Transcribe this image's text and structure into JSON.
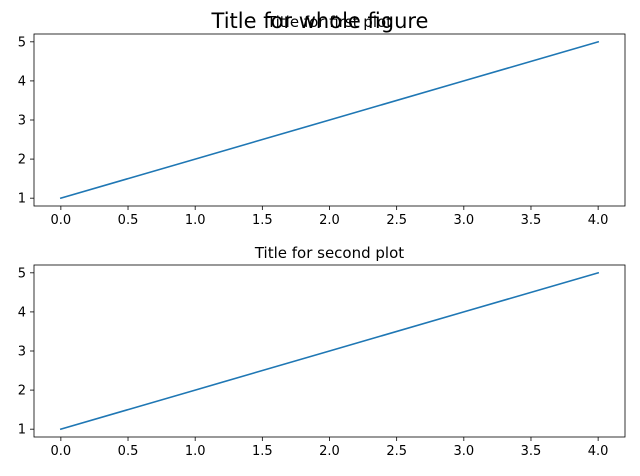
{
  "figure": {
    "suptitle": "Title for whole figure"
  },
  "chart_data": [
    {
      "type": "line",
      "title": "Title for first plot",
      "x": [
        0,
        1,
        2,
        3,
        4
      ],
      "series": [
        {
          "values": [
            1,
            2,
            3,
            4,
            5
          ],
          "color": "#1f77b4"
        }
      ],
      "xlim": [
        -0.2,
        4.2
      ],
      "ylim": [
        0.8,
        5.2
      ],
      "xticks": [
        0.0,
        0.5,
        1.0,
        1.5,
        2.0,
        2.5,
        3.0,
        3.5,
        4.0
      ],
      "xtick_labels": [
        "0.0",
        "0.5",
        "1.0",
        "1.5",
        "2.0",
        "2.5",
        "3.0",
        "3.5",
        "4.0"
      ],
      "yticks": [
        1,
        2,
        3,
        4,
        5
      ],
      "ytick_labels": [
        "1",
        "2",
        "3",
        "4",
        "5"
      ],
      "grid": false,
      "legend": "none"
    },
    {
      "type": "line",
      "title": "Title for second plot",
      "x": [
        0,
        1,
        2,
        3,
        4
      ],
      "series": [
        {
          "values": [
            1,
            2,
            3,
            4,
            5
          ],
          "color": "#1f77b4"
        }
      ],
      "xlim": [
        -0.2,
        4.2
      ],
      "ylim": [
        0.8,
        5.2
      ],
      "xticks": [
        0.0,
        0.5,
        1.0,
        1.5,
        2.0,
        2.5,
        3.0,
        3.5,
        4.0
      ],
      "xtick_labels": [
        "0.0",
        "0.5",
        "1.0",
        "1.5",
        "2.0",
        "2.5",
        "3.0",
        "3.5",
        "4.0"
      ],
      "yticks": [
        1,
        2,
        3,
        4,
        5
      ],
      "ytick_labels": [
        "1",
        "2",
        "3",
        "4",
        "5"
      ],
      "grid": false,
      "legend": "none"
    }
  ]
}
